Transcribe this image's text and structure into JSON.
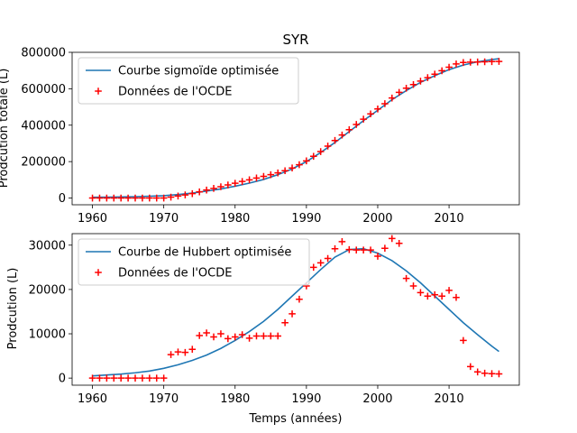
{
  "chart_data": [
    {
      "type": "line",
      "title": "SYR",
      "xlabel": "",
      "ylabel": "Prodcution totale (L)",
      "xlim": [
        1957.15,
        2019.85
      ],
      "ylim": [
        -37000,
        800000
      ],
      "xticks": [
        1960,
        1970,
        1980,
        1990,
        2000,
        2010
      ],
      "yticks": [
        0,
        200000,
        400000,
        600000,
        800000
      ],
      "legend_position": "upper-left",
      "series": [
        {
          "name": "Courbe sigmoïde optimisée",
          "kind": "line",
          "color": "#1f77b4",
          "x": [
            1960,
            1962,
            1964,
            1966,
            1968,
            1970,
            1972,
            1974,
            1976,
            1978,
            1980,
            1982,
            1984,
            1986,
            1988,
            1990,
            1992,
            1994,
            1996,
            1998,
            2000,
            2002,
            2004,
            2006,
            2008,
            2010,
            2012,
            2014,
            2016,
            2017
          ],
          "y": [
            4000,
            5000,
            6000,
            7500,
            10000,
            13000,
            19000,
            27000,
            38000,
            50000,
            65000,
            82000,
            102000,
            128000,
            160000,
            200000,
            250000,
            305000,
            365000,
            425000,
            482000,
            540000,
            590000,
            635000,
            672000,
            705000,
            730000,
            748000,
            760000,
            765000
          ]
        },
        {
          "name": "Données de l'OCDE",
          "kind": "scatter",
          "marker": "+",
          "color": "#ff0000",
          "x": [
            1960,
            1961,
            1962,
            1963,
            1964,
            1965,
            1966,
            1967,
            1968,
            1969,
            1970,
            1971,
            1972,
            1973,
            1974,
            1975,
            1976,
            1977,
            1978,
            1979,
            1980,
            1981,
            1982,
            1983,
            1984,
            1985,
            1986,
            1987,
            1988,
            1989,
            1990,
            1991,
            1992,
            1993,
            1994,
            1995,
            1996,
            1997,
            1998,
            1999,
            2000,
            2001,
            2002,
            2003,
            2004,
            2005,
            2006,
            2007,
            2008,
            2009,
            2010,
            2011,
            2012,
            2013,
            2014,
            2015,
            2016,
            2017
          ],
          "y": [
            0,
            0,
            0,
            0,
            0,
            0,
            0,
            0,
            0,
            0,
            0,
            5000,
            11000,
            17000,
            24000,
            34000,
            44000,
            53000,
            62000,
            72000,
            81000,
            91000,
            100000,
            110000,
            119000,
            128000,
            138000,
            150000,
            165000,
            183000,
            204000,
            229000,
            255000,
            285000,
            316000,
            346000,
            375000,
            404000,
            433000,
            462000,
            489000,
            518000,
            549000,
            580000,
            603000,
            623000,
            642000,
            661000,
            680000,
            699000,
            718000,
            736000,
            744000,
            746000,
            747000,
            748000,
            749000,
            750000
          ]
        }
      ]
    },
    {
      "type": "line",
      "title": "",
      "xlabel": "Temps (années)",
      "ylabel": "Prodcution (L)",
      "xlim": [
        1957.15,
        2019.85
      ],
      "ylim": [
        -1600,
        32600
      ],
      "xticks": [
        1960,
        1970,
        1980,
        1990,
        2000,
        2010
      ],
      "yticks": [
        0,
        10000,
        20000,
        30000
      ],
      "legend_position": "upper-left",
      "series": [
        {
          "name": "Courbe de Hubbert optimisée",
          "kind": "line",
          "color": "#1f77b4",
          "x": [
            1960,
            1962,
            1964,
            1966,
            1968,
            1970,
            1972,
            1974,
            1976,
            1978,
            1980,
            1982,
            1984,
            1986,
            1988,
            1990,
            1992,
            1994,
            1996,
            1998,
            2000,
            2002,
            2004,
            2006,
            2008,
            2010,
            2012,
            2014,
            2016,
            2017
          ],
          "y": [
            500,
            700,
            900,
            1200,
            1600,
            2200,
            3000,
            4000,
            5200,
            6700,
            8500,
            10500,
            12800,
            15500,
            18500,
            21500,
            24500,
            27300,
            29000,
            29200,
            28200,
            26500,
            24200,
            21500,
            18500,
            15500,
            12500,
            9800,
            7200,
            6000
          ]
        },
        {
          "name": "Données de l'OCDE",
          "kind": "scatter",
          "marker": "+",
          "color": "#ff0000",
          "x": [
            1960,
            1961,
            1962,
            1963,
            1964,
            1965,
            1966,
            1967,
            1968,
            1969,
            1970,
            1971,
            1972,
            1973,
            1974,
            1975,
            1976,
            1977,
            1978,
            1979,
            1980,
            1981,
            1982,
            1983,
            1984,
            1985,
            1986,
            1987,
            1988,
            1989,
            1990,
            1991,
            1992,
            1993,
            1994,
            1995,
            1996,
            1997,
            1998,
            1999,
            2000,
            2001,
            2002,
            2003,
            2004,
            2005,
            2006,
            2007,
            2008,
            2009,
            2010,
            2011,
            2012,
            2013,
            2014,
            2015,
            2016,
            2017
          ],
          "y": [
            0,
            0,
            0,
            0,
            0,
            0,
            0,
            0,
            0,
            0,
            0,
            5300,
            5900,
            5800,
            6500,
            9600,
            10200,
            9300,
            10000,
            8900,
            9300,
            9800,
            9000,
            9500,
            9500,
            9500,
            9500,
            12500,
            14500,
            17800,
            20800,
            25000,
            26000,
            27000,
            29200,
            30800,
            29000,
            28900,
            28900,
            28900,
            27500,
            29300,
            31500,
            30400,
            22500,
            20800,
            19300,
            18500,
            18800,
            18500,
            19800,
            18200,
            8500,
            2600,
            1400,
            1100,
            1000,
            950
          ]
        }
      ]
    }
  ]
}
